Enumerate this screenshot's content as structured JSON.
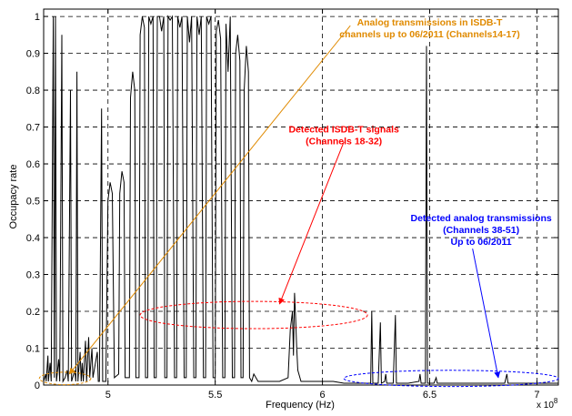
{
  "chart_data": {
    "type": "line",
    "xlabel": "Frequency (Hz)",
    "ylabel": "Occupacy rate",
    "x_exponent_label": "x 10",
    "x_exponent_power": "8",
    "xlim": [
      4.7,
      7.1
    ],
    "ylim": [
      0,
      1.02
    ],
    "x_ticks": [
      5,
      5.5,
      6,
      6.5,
      7
    ],
    "x_tick_labels": [
      "5",
      "5.5",
      "6",
      "6.5",
      "7"
    ],
    "y_ticks": [
      0,
      0.1,
      0.2,
      0.3,
      0.4,
      0.5,
      0.6,
      0.7,
      0.8,
      0.9,
      1
    ],
    "y_tick_labels": [
      "0",
      "0.1",
      "0.2",
      "0.3",
      "0.4",
      "0.5",
      "0.6",
      "0.7",
      "0.8",
      "0.9",
      "1"
    ],
    "grid": true,
    "colors": {
      "trace": "#000000",
      "orange": "#e08a00",
      "red": "#ff0000",
      "blue": "#0000ff"
    },
    "series": [
      {
        "color": "#000000",
        "points": [
          [
            4.7,
            0.01
          ],
          [
            4.71,
            0.03
          ],
          [
            4.712,
            0.01
          ],
          [
            4.72,
            0.08
          ],
          [
            4.722,
            0.01
          ],
          [
            4.73,
            0.06
          ],
          [
            4.735,
            0.01
          ],
          [
            4.745,
            1.0
          ],
          [
            4.75,
            0.02
          ],
          [
            4.755,
            1.0
          ],
          [
            4.76,
            0.01
          ],
          [
            4.77,
            0.07
          ],
          [
            4.775,
            0.01
          ],
          [
            4.785,
            0.95
          ],
          [
            4.79,
            0.01
          ],
          [
            4.8,
            0.02
          ],
          [
            4.81,
            0.04
          ],
          [
            4.815,
            0.01
          ],
          [
            4.825,
            0.8
          ],
          [
            4.83,
            0.01
          ],
          [
            4.845,
            0.04
          ],
          [
            4.85,
            0.01
          ],
          [
            4.855,
            0.85
          ],
          [
            4.86,
            0.01
          ],
          [
            4.87,
            0.09
          ],
          [
            4.875,
            0.01
          ],
          [
            4.88,
            0.06
          ],
          [
            4.885,
            0.01
          ],
          [
            4.895,
            0.12
          ],
          [
            4.9,
            0.01
          ],
          [
            4.91,
            0.13
          ],
          [
            4.915,
            0.02
          ],
          [
            4.925,
            0.1
          ],
          [
            4.93,
            0.02
          ],
          [
            4.95,
            0.09
          ],
          [
            4.955,
            0.01
          ],
          [
            4.96,
            0.01
          ],
          [
            4.97,
            0.75
          ],
          [
            4.975,
            0.01
          ],
          [
            4.99,
            0.01
          ],
          [
            5.0,
            0.5
          ],
          [
            5.01,
            0.55
          ],
          [
            5.02,
            0.52
          ],
          [
            5.03,
            0.02
          ],
          [
            5.05,
            0.03
          ],
          [
            5.055,
            0.52
          ],
          [
            5.065,
            0.58
          ],
          [
            5.075,
            0.55
          ],
          [
            5.08,
            0.02
          ],
          [
            5.1,
            0.02
          ],
          [
            5.105,
            0.78
          ],
          [
            5.115,
            0.85
          ],
          [
            5.125,
            0.8
          ],
          [
            5.13,
            0.02
          ],
          [
            5.145,
            0.02
          ],
          [
            5.15,
            0.95
          ],
          [
            5.16,
            1.0
          ],
          [
            5.17,
            0.97
          ],
          [
            5.175,
            0.02
          ],
          [
            5.185,
            0.02
          ],
          [
            5.19,
            1.0
          ],
          [
            5.2,
            0.98
          ],
          [
            5.21,
            1.0
          ],
          [
            5.215,
            0.02
          ],
          [
            5.225,
            0.02
          ],
          [
            5.23,
            1.0
          ],
          [
            5.24,
            1.0
          ],
          [
            5.25,
            0.96
          ],
          [
            5.26,
            1.0
          ],
          [
            5.265,
            0.02
          ],
          [
            5.275,
            0.02
          ],
          [
            5.28,
            1.0
          ],
          [
            5.29,
            0.99
          ],
          [
            5.3,
            1.0
          ],
          [
            5.31,
            0.02
          ],
          [
            5.32,
            0.02
          ],
          [
            5.325,
            1.0
          ],
          [
            5.335,
            0.97
          ],
          [
            5.345,
            1.0
          ],
          [
            5.355,
            0.02
          ],
          [
            5.365,
            0.02
          ],
          [
            5.37,
            1.0
          ],
          [
            5.38,
            0.93
          ],
          [
            5.39,
            1.0
          ],
          [
            5.4,
            0.02
          ],
          [
            5.41,
            0.02
          ],
          [
            5.415,
            1.0
          ],
          [
            5.425,
            0.95
          ],
          [
            5.435,
            1.0
          ],
          [
            5.445,
            0.02
          ],
          [
            5.455,
            0.02
          ],
          [
            5.46,
            1.0
          ],
          [
            5.47,
            0.98
          ],
          [
            5.48,
            1.0
          ],
          [
            5.49,
            0.02
          ],
          [
            5.5,
            0.02
          ],
          [
            5.505,
            0.96
          ],
          [
            5.515,
            0.99
          ],
          [
            5.525,
            0.94
          ],
          [
            5.535,
            0.02
          ],
          [
            5.545,
            0.02
          ],
          [
            5.55,
            0.98
          ],
          [
            5.56,
            0.85
          ],
          [
            5.57,
            1.0
          ],
          [
            5.58,
            0.02
          ],
          [
            5.59,
            0.02
          ],
          [
            5.595,
            0.9
          ],
          [
            5.605,
            0.95
          ],
          [
            5.615,
            0.88
          ],
          [
            5.62,
            0.02
          ],
          [
            5.63,
            0.02
          ],
          [
            5.635,
            0.8
          ],
          [
            5.645,
            0.92
          ],
          [
            5.655,
            0.85
          ],
          [
            5.66,
            0.02
          ],
          [
            5.67,
            0.01
          ],
          [
            5.68,
            0.03
          ],
          [
            5.7,
            0.01
          ],
          [
            5.75,
            0.01
          ],
          [
            5.8,
            0.01
          ],
          [
            5.84,
            0.02
          ],
          [
            5.85,
            0.15
          ],
          [
            5.86,
            0.2
          ],
          [
            5.865,
            0.08
          ],
          [
            5.87,
            0.25
          ],
          [
            5.875,
            0.18
          ],
          [
            5.88,
            0.1
          ],
          [
            5.885,
            0.04
          ],
          [
            5.9,
            0.01
          ],
          [
            5.95,
            0.01
          ],
          [
            6.0,
            0.01
          ],
          [
            6.05,
            0.01
          ],
          [
            6.1,
            0.005
          ],
          [
            6.15,
            0.005
          ],
          [
            6.2,
            0.005
          ],
          [
            6.225,
            0.005
          ],
          [
            6.23,
            0.2
          ],
          [
            6.235,
            0.005
          ],
          [
            6.26,
            0.005
          ],
          [
            6.27,
            0.17
          ],
          [
            6.275,
            0.005
          ],
          [
            6.29,
            0.01
          ],
          [
            6.295,
            0.03
          ],
          [
            6.3,
            0.005
          ],
          [
            6.33,
            0.005
          ],
          [
            6.34,
            0.19
          ],
          [
            6.345,
            0.005
          ],
          [
            6.4,
            0.005
          ],
          [
            6.45,
            0.01
          ],
          [
            6.455,
            0.03
          ],
          [
            6.46,
            0.005
          ],
          [
            6.48,
            0.005
          ],
          [
            6.485,
            0.92
          ],
          [
            6.49,
            0.005
          ],
          [
            6.52,
            0.005
          ],
          [
            6.53,
            0.02
          ],
          [
            6.535,
            0.005
          ],
          [
            6.6,
            0.005
          ],
          [
            6.65,
            0.005
          ],
          [
            6.7,
            0.005
          ],
          [
            6.8,
            0.005
          ],
          [
            6.85,
            0.005
          ],
          [
            6.86,
            0.03
          ],
          [
            6.865,
            0.005
          ],
          [
            6.9,
            0.005
          ],
          [
            7.0,
            0.005
          ],
          [
            7.1,
            0.005
          ]
        ]
      }
    ],
    "annotations": [
      {
        "line1": "Analog transmissions in ISDB-T",
        "line2": "channels up to 06/2011 (Channels14-17)",
        "color": "#e08a00",
        "text_anchor_data": [
          6.5,
          0.975
        ],
        "arrow_from_data": [
          6.13,
          0.975
        ],
        "arrow_to_data": [
          4.82,
          0.03
        ],
        "ellipse_data": {
          "cx": 4.8,
          "cy": 0.018,
          "rx": 0.12,
          "ry": 0.017
        }
      },
      {
        "line1": "Detected ISDB-T signals",
        "line2": "(Channels 18-32)",
        "color": "#ff0000",
        "text_anchor_data": [
          6.1,
          0.685
        ],
        "arrow_from_data": [
          6.1,
          0.66
        ],
        "arrow_to_data": [
          5.8,
          0.22
        ],
        "ellipse_data": {
          "cx": 5.68,
          "cy": 0.19,
          "rx": 0.53,
          "ry": 0.037
        }
      },
      {
        "line1": "Detected analog transmissions",
        "line2": "(Channels 38-51)",
        "line3": "Up to 06/2011",
        "color": "#0000ff",
        "text_anchor_data": [
          6.74,
          0.445
        ],
        "arrow_from_data": [
          6.7,
          0.37
        ],
        "arrow_to_data": [
          6.82,
          0.02
        ],
        "ellipse_data": {
          "cx": 6.6,
          "cy": 0.018,
          "rx": 0.5,
          "ry": 0.022
        }
      }
    ]
  }
}
